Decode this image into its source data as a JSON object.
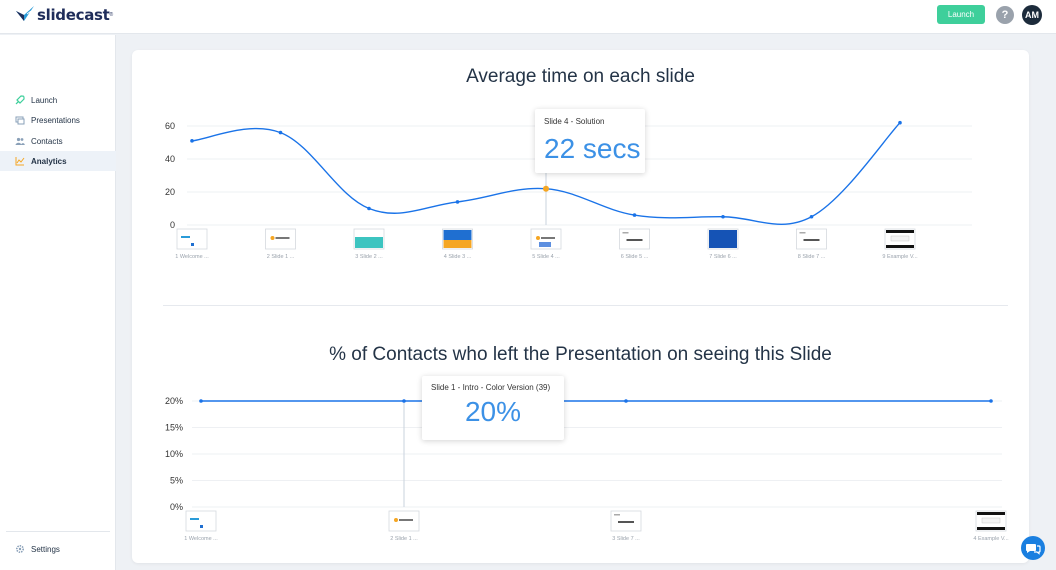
{
  "app": {
    "logo_text": "slidecast",
    "launch_button": "Launch",
    "help_button": "?",
    "avatar_initials": "AM"
  },
  "sidebar": {
    "items": [
      {
        "label": "Launch",
        "icon": "rocket-icon",
        "active": false
      },
      {
        "label": "Presentations",
        "icon": "presentations-icon",
        "active": false
      },
      {
        "label": "Contacts",
        "icon": "contacts-icon",
        "active": false
      },
      {
        "label": "Analytics",
        "icon": "analytics-icon",
        "active": true
      }
    ],
    "settings_label": "Settings"
  },
  "colors": {
    "accent": "#3c91e6",
    "line": "#1a73e8",
    "highlight_point": "#f5a623",
    "launch_button": "#3ecf9b"
  },
  "chart_data": [
    {
      "type": "line",
      "title": "Average time on each slide",
      "categories": [
        "1 Welcome ...",
        "2 Slide 1 ...",
        "3 Slide 2 ...",
        "4 Slide 3 ...",
        "5 Slide 4 ...",
        "6 Slide 5 ...",
        "7 Slide 6 ...",
        "8 Slide 7 ...",
        "9 Example V..."
      ],
      "thumbnails": [
        "logo-blue",
        "your-logo",
        "teal",
        "blue-orange",
        "your-logo-people",
        "feature",
        "blue-dark",
        "testimonials",
        "video"
      ],
      "values": [
        51,
        56,
        10,
        14,
        22,
        6,
        5,
        5,
        62
      ],
      "yticks": [
        "0",
        "20",
        "40",
        "60"
      ],
      "ylim": [
        0,
        60
      ],
      "smooth": true,
      "highlight_index": 4,
      "tooltip": {
        "label": "Slide 4 - Solution",
        "value": "22 secs"
      }
    },
    {
      "type": "line",
      "title": "% of Contacts who left the Presentation on seeing this Slide",
      "categories": [
        "1 Welcome ...",
        "2 Slide 1 ...",
        "3 Slide 7 ...",
        "4 Example V..."
      ],
      "thumbnails": [
        "logo-blue",
        "your-logo",
        "testimonials",
        "video"
      ],
      "values": [
        20,
        20,
        20,
        20
      ],
      "yticks": [
        "0%",
        "5%",
        "10%",
        "15%",
        "20%"
      ],
      "ylim": [
        0,
        20
      ],
      "highlight_index": 1,
      "tooltip": {
        "label": "Slide 1 - Intro - Color Version (39)",
        "value": "20%"
      }
    }
  ]
}
